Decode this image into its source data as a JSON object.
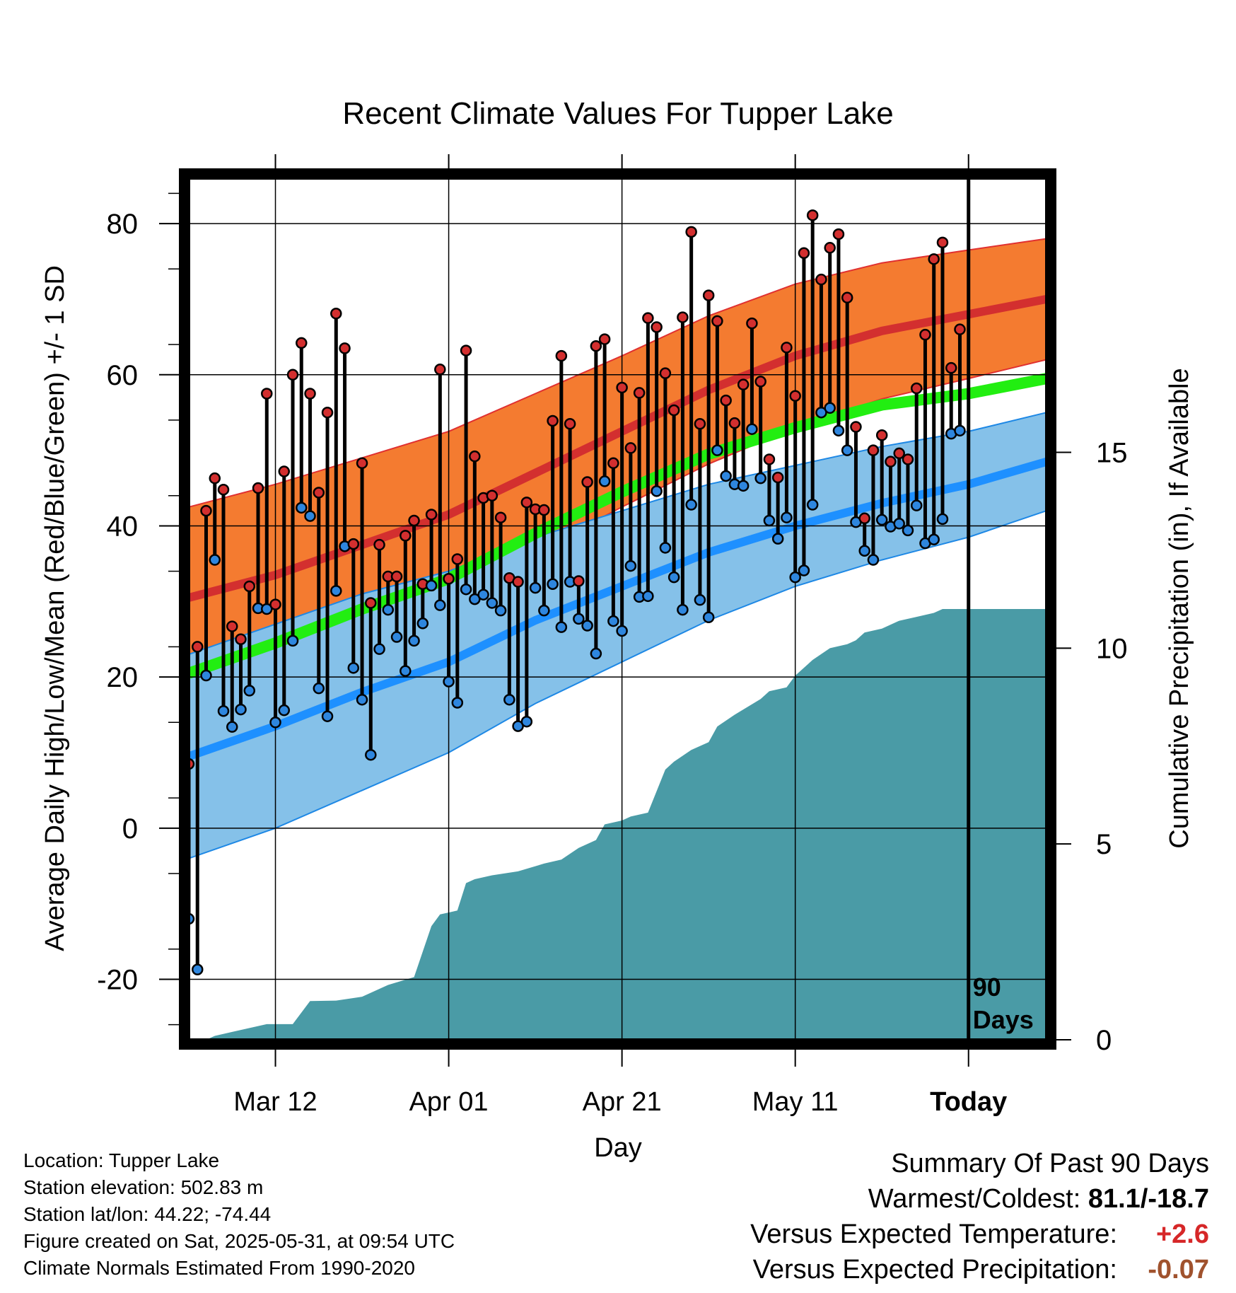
{
  "chart_data": {
    "type": "line",
    "title": "Recent Climate Values For Tupper Lake",
    "xlabel": "Day",
    "ylabel": "Average Daily High/Low/Mean (Red/Blue/Green) +/- 1 SD",
    "y2label": "Cumulative Precipitation (in), If Available",
    "xlim": [
      0,
      90
    ],
    "ylim": [
      -28,
      86
    ],
    "y2lim": [
      0,
      22
    ],
    "x_ticks": [
      {
        "day": 10,
        "label": "Mar 12"
      },
      {
        "day": 30,
        "label": "Apr 01"
      },
      {
        "day": 50,
        "label": "Apr 21"
      },
      {
        "day": 70,
        "label": "May 11"
      },
      {
        "day": 90,
        "label": "Today"
      }
    ],
    "y_ticks": [
      -20,
      0,
      20,
      40,
      60,
      80
    ],
    "y2_ticks": [
      0,
      5,
      10,
      15
    ],
    "today_marker": {
      "day": 90,
      "label_line1": "90",
      "label_line2": "Days"
    },
    "normals": {
      "x": [
        0,
        10,
        20,
        30,
        40,
        50,
        60,
        70,
        80,
        90,
        99
      ],
      "high_mean": [
        30.5,
        33.5,
        37.5,
        41.5,
        47.0,
        52.5,
        58.0,
        62.5,
        65.8,
        68.0,
        70.0
      ],
      "high_sd": [
        12,
        12,
        11.5,
        11,
        10.5,
        10,
        9.8,
        9.5,
        9,
        8.5,
        8
      ],
      "low_mean": [
        9.5,
        13.5,
        18.0,
        22.0,
        27.5,
        32.0,
        36.5,
        40.0,
        43.0,
        45.5,
        48.5
      ],
      "low_sd": [
        13.5,
        13.5,
        13,
        12,
        11,
        10,
        9,
        8,
        7.5,
        7,
        6.5
      ],
      "mean": [
        20.5,
        24.5,
        29.0,
        33.0,
        39.0,
        44.5,
        49.5,
        53.0,
        56.0,
        57.5,
        59.5
      ]
    },
    "series": [
      {
        "name": "High",
        "values": [
          8.5,
          24,
          42,
          46.3,
          44.8,
          26.7,
          25,
          32,
          45,
          57.5,
          29.6,
          47.2,
          60,
          64.2,
          57.5,
          44.4,
          55,
          68.1,
          63.5,
          37.6,
          48.3,
          29.8,
          37.5,
          33.3,
          33.3,
          38.7,
          40.7,
          32.3,
          41.5,
          60.7,
          33,
          35.6,
          63.2,
          49.2,
          43.7,
          44,
          41.1,
          33.1,
          32.6,
          43.1,
          42.2,
          42.1,
          53.9,
          62.5,
          53.5,
          32.7,
          45.8,
          63.8,
          64.7,
          48.3,
          58.3,
          50.3,
          57.6,
          67.5,
          66.3,
          60.2,
          55.3,
          67.6,
          78.9,
          53.5,
          70.5,
          67.1,
          56.6,
          53.6,
          58.7,
          66.8,
          59.1,
          48.8,
          46.4,
          63.6,
          57.2,
          76.1,
          81.1,
          72.6,
          76.8,
          78.6,
          70.2,
          53.1,
          41,
          50,
          52,
          48.5,
          49.6,
          48.8,
          58.2,
          65.3,
          75.3,
          77.5,
          60.9,
          66.0
        ],
        "lows": [
          -12,
          -18.7,
          20.2,
          35.5,
          15.5,
          13.4,
          15.7,
          18.2,
          29.1,
          29,
          14,
          15.6,
          24.8,
          42.4,
          41.3,
          18.5,
          14.8,
          31.4,
          37.3,
          21.2,
          17,
          9.7,
          23.7,
          28.9,
          25.3,
          20.8,
          24.8,
          27.1,
          32.1,
          29.5,
          19.4,
          16.6,
          31.6,
          30.3,
          30.9,
          29.8,
          28.8,
          17,
          13.5,
          14.1,
          31.8,
          28.8,
          32.3,
          26.6,
          32.6,
          27.7,
          26.8,
          23.1,
          45.9,
          27.4,
          26.1,
          34.7,
          30.6,
          30.7,
          44.6,
          37.1,
          33.2,
          28.9,
          42.8,
          30.2,
          27.9,
          50,
          46.6,
          45.5,
          45.3,
          52.8,
          46.3,
          40.7,
          38.3,
          41.1,
          33.2,
          34.1,
          42.8,
          55,
          55.6,
          52.6,
          50,
          40.5,
          36.7,
          35.5,
          40.8,
          39.9,
          40.3,
          39.4,
          42.7,
          37.7,
          38.2,
          40.9,
          52.2,
          52.6
        ]
      }
    ],
    "precipitation": {
      "x": [
        0,
        2,
        3,
        5,
        7,
        9,
        12,
        14,
        17,
        20,
        23,
        26,
        28,
        29,
        31,
        32,
        33,
        35,
        38,
        41,
        43,
        45,
        47,
        48,
        50,
        51,
        53,
        55,
        56,
        58,
        60,
        61,
        63,
        66,
        67,
        69,
        70,
        72,
        74,
        76,
        77,
        78,
        80,
        82,
        84,
        86,
        87,
        90,
        99
      ],
      "cum": [
        0,
        0,
        0.1,
        0.2,
        0.3,
        0.4,
        0.4,
        0.99,
        1.0,
        1.1,
        1.4,
        1.6,
        2.9,
        3.2,
        3.3,
        4.0,
        4.1,
        4.2,
        4.3,
        4.5,
        4.6,
        4.9,
        5.1,
        5.5,
        5.6,
        5.7,
        5.8,
        6.9,
        7.1,
        7.4,
        7.6,
        8.0,
        8.3,
        8.7,
        8.9,
        9.0,
        9.3,
        9.7,
        10.0,
        10.1,
        10.2,
        10.4,
        10.5,
        10.7,
        10.8,
        10.9,
        11.0,
        11.0,
        11.0
      ]
    }
  },
  "info": {
    "location": "Location: Tupper Lake",
    "elevation": "Station elevation: 502.83 m",
    "latlon": "Station lat/lon: 44.22; -74.44",
    "created": "Figure created on Sat, 2025-05-31, at 09:54 UTC",
    "normals": "Climate Normals Estimated From 1990-2020"
  },
  "summary": {
    "title": "Summary Of Past 90 Days",
    "warm_label": "Warmest/Coldest: ",
    "warm_value": "81.1/-18.7",
    "temp_label": "Versus Expected Temperature:",
    "temp_value": "+2.6",
    "precip_label": "Versus Expected Precipitation:",
    "precip_value": "-0.07",
    "temp_color": "#d62728",
    "precip_color": "#a0522d"
  },
  "colors": {
    "high_band": "#f47b30",
    "high_line": "#d32f2f",
    "low_band": "#85c1e9",
    "low_line": "#1e90ff",
    "mean_line": "#22ee11",
    "precip": "#4a9ba6",
    "high_dot": "#d32f2f",
    "low_dot": "#2e86de"
  }
}
